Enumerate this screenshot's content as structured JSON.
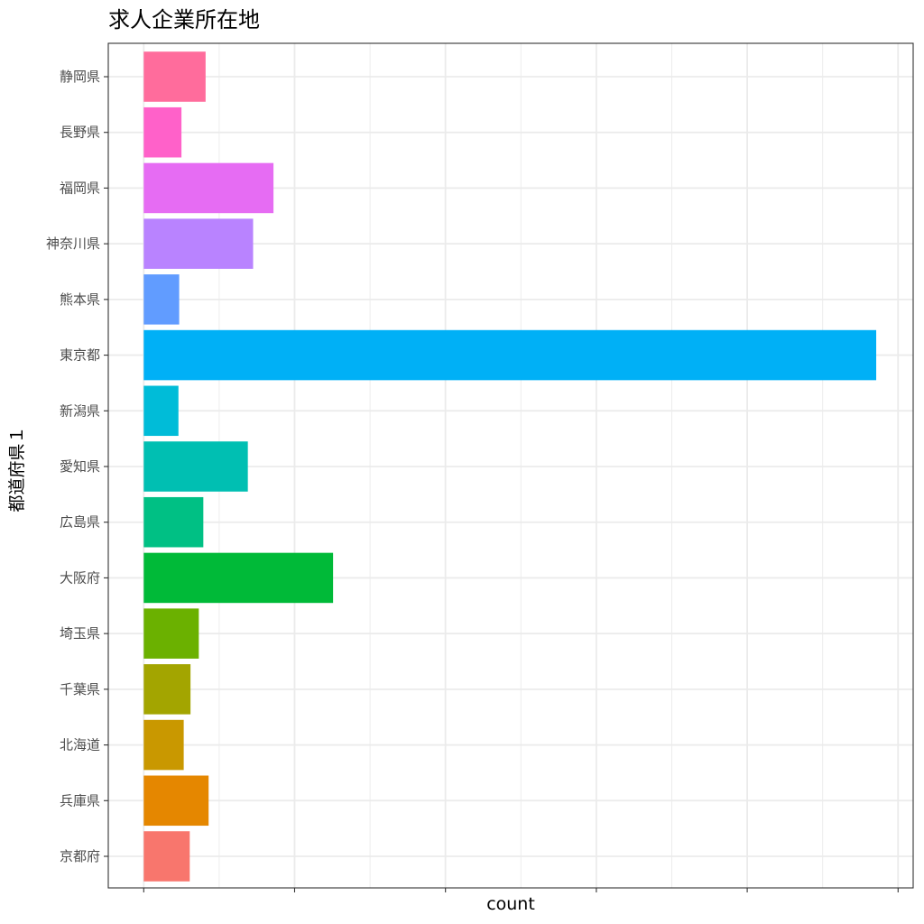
{
  "chart_data": {
    "type": "bar",
    "orientation": "horizontal",
    "title": "求人企業所在地",
    "xlabel": "count",
    "ylabel": "都道府県１",
    "categories": [
      "静岡県",
      "長野県",
      "福岡県",
      "神奈川県",
      "熊本県",
      "東京都",
      "新潟県",
      "愛知県",
      "広島県",
      "大阪府",
      "埼玉県",
      "千葉県",
      "北海道",
      "兵庫県",
      "京都府"
    ],
    "values": [
      82,
      50,
      172,
      145,
      47,
      971,
      46,
      138,
      79,
      251,
      73,
      62,
      53,
      86,
      61
    ],
    "colors": [
      "#FF6C9C",
      "#FF61C9",
      "#E66CF3",
      "#B983FF",
      "#619CFF",
      "#00B0F6",
      "#00BCD8",
      "#00BFB2",
      "#00C084",
      "#00BA38",
      "#6BB100",
      "#A3A500",
      "#C99800",
      "#E58700",
      "#F8766D"
    ],
    "xlim": [
      -47,
      1020
    ],
    "x_tick_labels_shown": false,
    "grid": true,
    "legend": "none",
    "theme": "bw"
  }
}
